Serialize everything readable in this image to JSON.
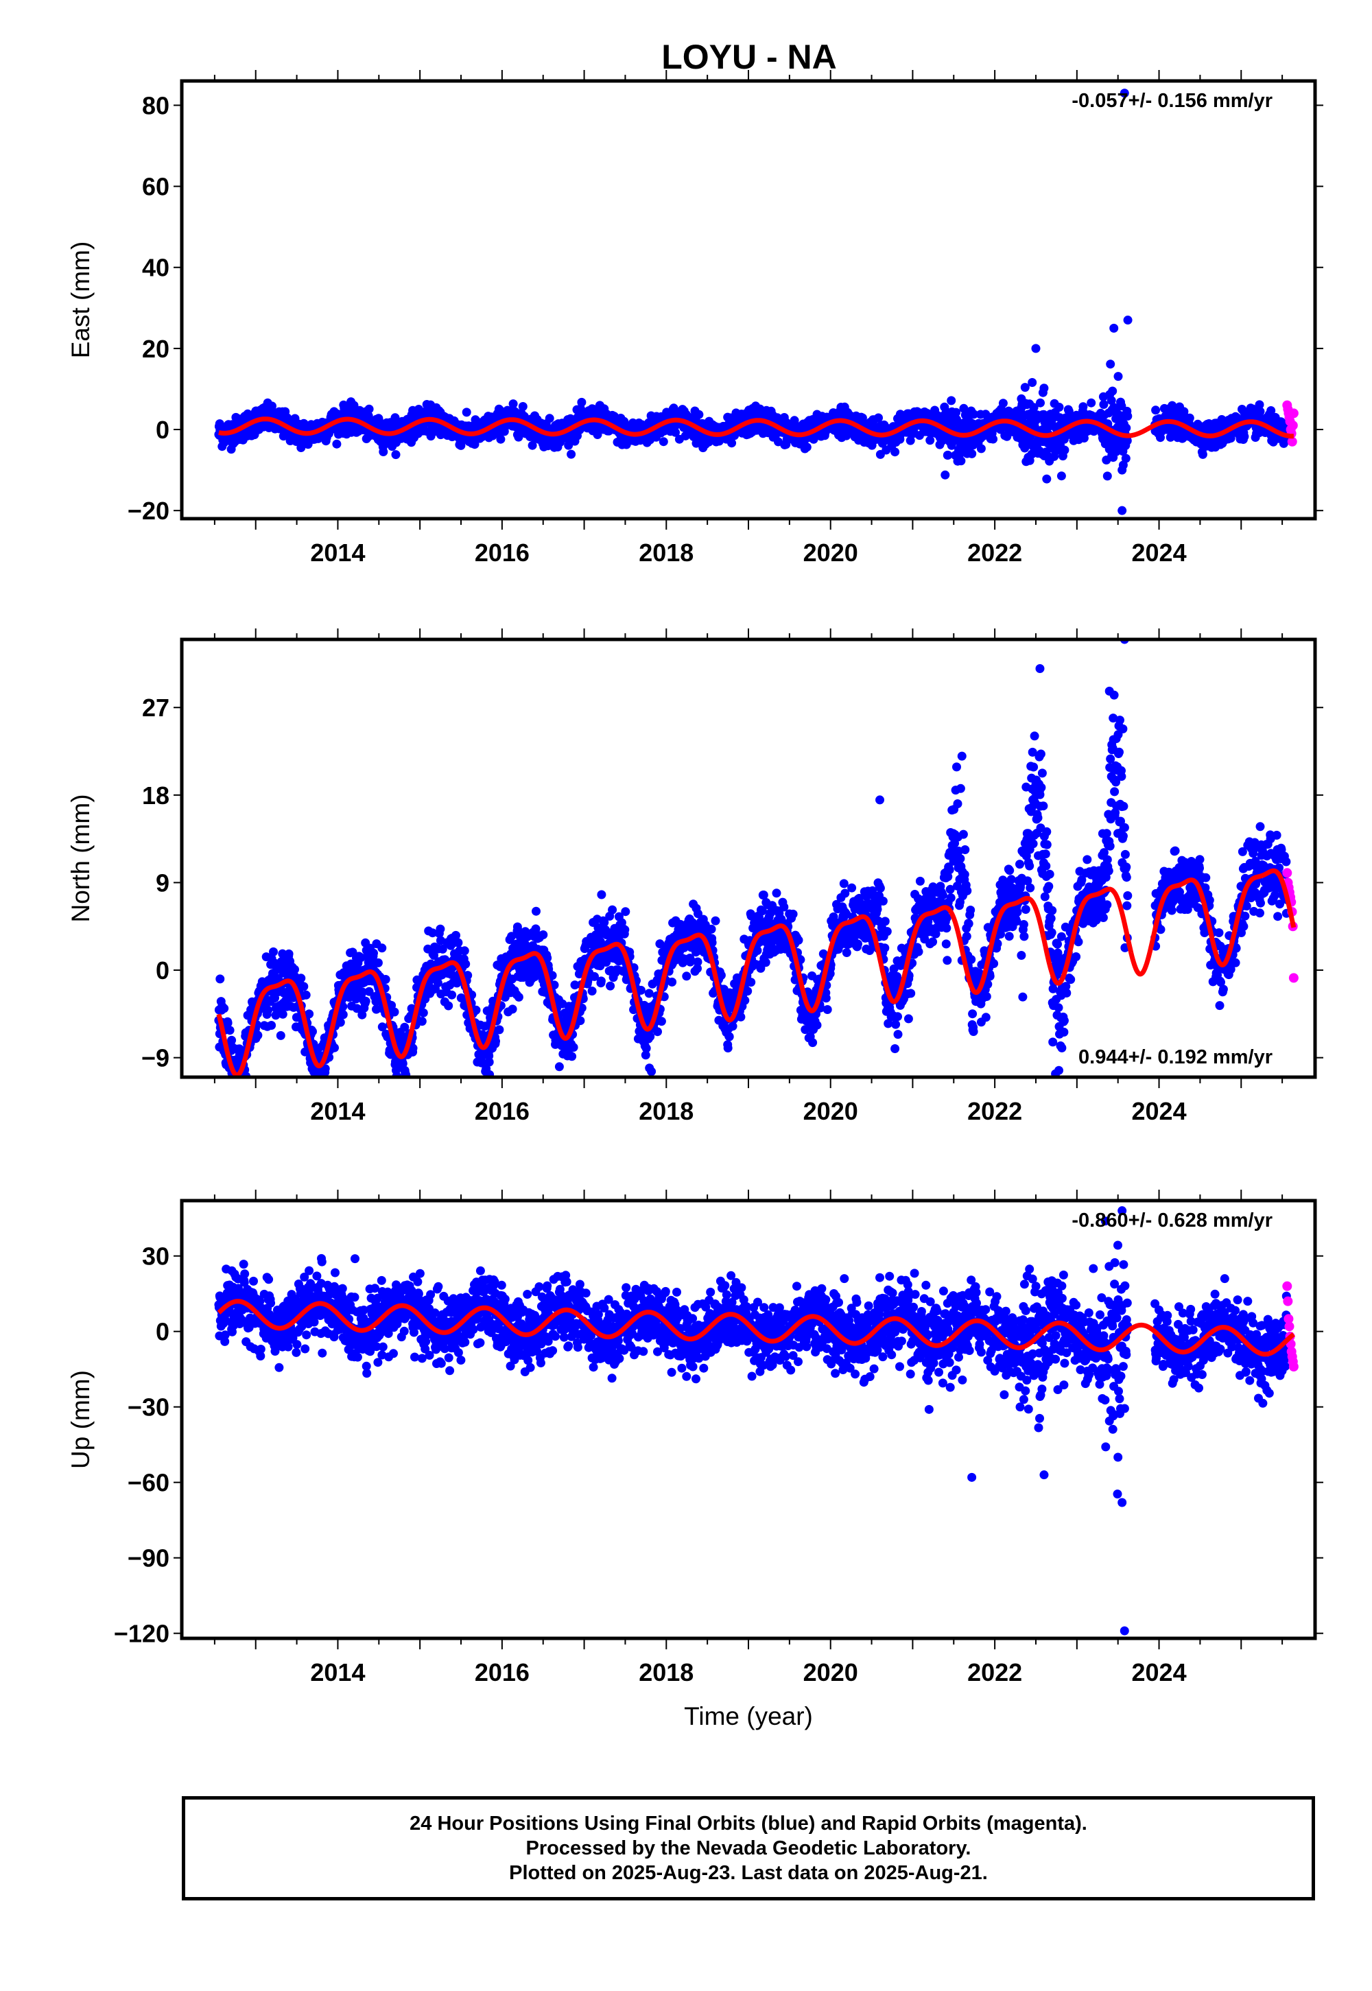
{
  "title": "LOYU - NA",
  "footer": {
    "line1": "24 Hour Positions Using Final Orbits (blue) and Rapid Orbits (magenta).",
    "line2": "Processed by the Nevada Geodetic Laboratory.",
    "line3": "Plotted on 2025-Aug-23. Last data on 2025-Aug-21."
  },
  "colors": {
    "final": "#0000ff",
    "rapid": "#ff00ff",
    "fit": "#ff0000",
    "frame": "#000000"
  },
  "chart_data": [
    {
      "type": "scatter",
      "id": "east",
      "ylabel": "East (mm)",
      "xlabel": "",
      "rate_text": "-0.057+/- 0.156 mm/yr",
      "rate_position": "top-right",
      "xlim": [
        2012.1,
        2025.9
      ],
      "ylim": [
        -22,
        86
      ],
      "yticks": [
        -20,
        0,
        20,
        40,
        60,
        80
      ],
      "ytick_labels": [
        "−20",
        "0",
        "20",
        "40",
        "60",
        "80"
      ],
      "xticks": [
        2014,
        2016,
        2018,
        2020,
        2022,
        2024
      ],
      "xtick_labels": [
        "2014",
        "2016",
        "2018",
        "2020",
        "2022",
        "2024"
      ],
      "final_orbits": {
        "start": 2012.55,
        "end": 2025.56,
        "gap": [
          2023.62,
          2023.95
        ],
        "noise_sd": 1.6,
        "noise_episodes": [
          {
            "from": 2021.35,
            "to": 2021.75,
            "sd": 3.0
          },
          {
            "from": 2022.3,
            "to": 2022.85,
            "sd": 4.5
          },
          {
            "from": 2023.3,
            "to": 2023.62,
            "sd": 5.5
          }
        ],
        "outliers": [
          [
            2023.58,
            83
          ],
          [
            2023.62,
            27
          ],
          [
            2023.45,
            25
          ],
          [
            2022.5,
            20
          ],
          [
            2023.55,
            -20
          ],
          [
            2023.55,
            -10
          ],
          [
            2021.55,
            -6
          ]
        ]
      },
      "rapid_orbits": {
        "start": 2025.56,
        "end": 2025.64,
        "values": [
          6,
          5,
          4,
          3,
          2,
          0,
          -1,
          -3,
          1,
          4
        ]
      },
      "model": {
        "offset": 0.5,
        "rate": -0.057,
        "ref_year": 2019,
        "annual_cos": 1.3,
        "annual_sin": 1.2,
        "semiannual_cos": 0.0,
        "semiannual_sin": 0.0
      }
    },
    {
      "type": "scatter",
      "id": "north",
      "ylabel": "North (mm)",
      "xlabel": "",
      "rate_text": "0.944+/- 0.192 mm/yr",
      "rate_position": "bottom-right",
      "xlim": [
        2012.1,
        2025.9
      ],
      "ylim": [
        -11,
        34
      ],
      "yticks": [
        -9,
        0,
        9,
        18,
        27
      ],
      "ytick_labels": [
        "−9",
        "0",
        "9",
        "18",
        "27"
      ],
      "xticks": [
        2014,
        2016,
        2018,
        2020,
        2022,
        2024
      ],
      "xtick_labels": [
        "2014",
        "2016",
        "2018",
        "2020",
        "2022",
        "2024"
      ],
      "final_orbits": {
        "start": 2012.55,
        "end": 2025.56,
        "gap": [
          2023.62,
          2023.95
        ],
        "noise_sd": 1.6,
        "noise_episodes": [
          {
            "from": 2020.5,
            "to": 2020.7,
            "sd": 2.5
          },
          {
            "from": 2021.35,
            "to": 2021.75,
            "sd": 3.0
          },
          {
            "from": 2022.3,
            "to": 2022.85,
            "sd": 3.5
          },
          {
            "from": 2023.3,
            "to": 2023.62,
            "sd": 4.0
          }
        ],
        "bumps": [
          {
            "from": 2020.5,
            "to": 2020.7,
            "add": 4
          },
          {
            "from": 2021.4,
            "to": 2021.72,
            "add": 9
          },
          {
            "from": 2022.35,
            "to": 2022.72,
            "add": 12
          },
          {
            "from": 2023.35,
            "to": 2023.62,
            "add": 14
          }
        ],
        "outliers": [
          [
            2023.58,
            34
          ],
          [
            2022.55,
            31
          ],
          [
            2021.6,
            22
          ],
          [
            2020.6,
            17.5
          ],
          [
            2020.95,
            -5
          ],
          [
            2021.6,
            1
          ]
        ]
      },
      "rapid_orbits": {
        "start": 2025.56,
        "end": 2025.64,
        "values": [
          10,
          9,
          8.5,
          8,
          7.5,
          7,
          6,
          4.5,
          -0.8
        ]
      },
      "model": {
        "offset": 0.8,
        "rate": 0.944,
        "ref_year": 2019,
        "annual_cos": -0.9,
        "annual_sin": 4.3,
        "semiannual_cos": 1.3,
        "semiannual_sin": 0.3
      }
    },
    {
      "type": "scatter",
      "id": "up",
      "ylabel": "Up (mm)",
      "xlabel": "Time (year)",
      "rate_text": "-0.860+/- 0.628 mm/yr",
      "rate_position": "top-right",
      "xlim": [
        2012.1,
        2025.9
      ],
      "ylim": [
        -122,
        52
      ],
      "yticks": [
        -120,
        -90,
        -60,
        -30,
        0,
        30
      ],
      "ytick_labels": [
        "−120",
        "−90",
        "−60",
        "−30",
        "0",
        "30"
      ],
      "xticks": [
        2014,
        2016,
        2018,
        2020,
        2022,
        2024
      ],
      "xtick_labels": [
        "2014",
        "2016",
        "2018",
        "2020",
        "2022",
        "2024"
      ],
      "final_orbits": {
        "start": 2012.55,
        "end": 2025.56,
        "gap": [
          2023.62,
          2023.95
        ],
        "noise_sd": 6.5,
        "noise_episodes": [
          {
            "from": 2020.0,
            "to": 2021.8,
            "sd": 8.0
          },
          {
            "from": 2022.3,
            "to": 2022.85,
            "sd": 14.0
          },
          {
            "from": 2023.3,
            "to": 2023.62,
            "sd": 18.0
          }
        ],
        "outliers": [
          [
            2023.55,
            48
          ],
          [
            2023.58,
            -119
          ],
          [
            2023.55,
            -68
          ],
          [
            2021.72,
            -58
          ],
          [
            2022.6,
            -57
          ],
          [
            2023.5,
            -50
          ],
          [
            2023.2,
            25
          ],
          [
            2022.7,
            20
          ],
          [
            2024.8,
            21
          ],
          [
            2013.8,
            29
          ],
          [
            2021.2,
            -31
          ]
        ]
      },
      "rapid_orbits": {
        "start": 2025.56,
        "end": 2025.64,
        "values": [
          18,
          12,
          5,
          2,
          -2,
          -5,
          -8,
          -10,
          -12,
          -14
        ]
      },
      "model": {
        "offset": 1.5,
        "rate": -0.86,
        "ref_year": 2019,
        "annual_cos": 1.2,
        "annual_sin": -5.0,
        "semiannual_cos": 0.0,
        "semiannual_sin": 0.0
      }
    }
  ]
}
